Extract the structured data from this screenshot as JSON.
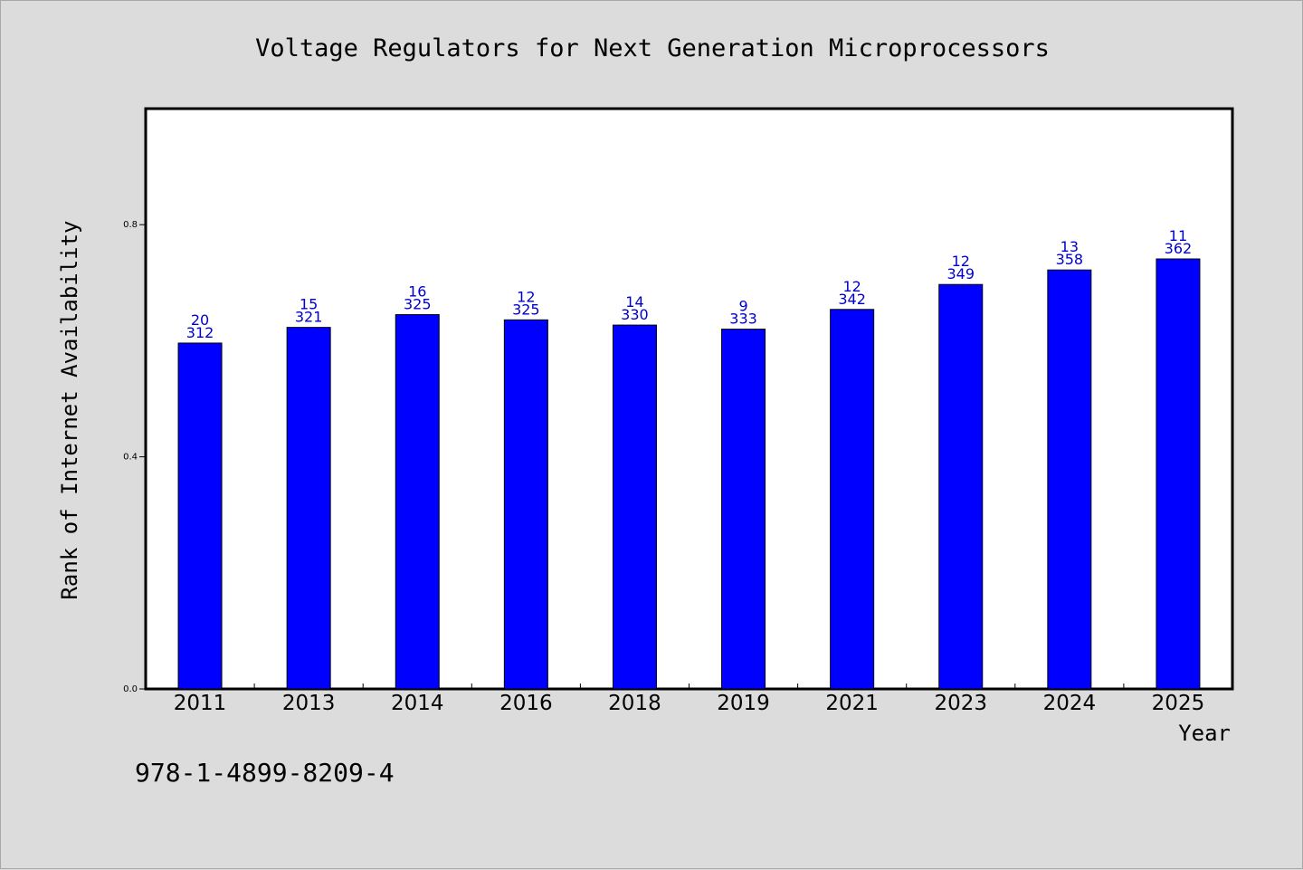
{
  "chart_data": {
    "type": "bar",
    "title": "Voltage Regulators for Next Generation Microprocessors",
    "xlabel": "Year",
    "ylabel": "Rank of Internet Availability",
    "ylim": [
      0,
      1.0
    ],
    "yticks": [
      "0.0",
      "0.4",
      "0.8"
    ],
    "grid": false,
    "legend": "none",
    "categories": [
      "2011",
      "2013",
      "2014",
      "2016",
      "2018",
      "2019",
      "2021",
      "2023",
      "2024",
      "2025"
    ],
    "values": [
      0.596,
      0.623,
      0.645,
      0.636,
      0.627,
      0.62,
      0.654,
      0.697,
      0.722,
      0.741
    ],
    "labels_top": [
      "20",
      "15",
      "16",
      "12",
      "14",
      "9",
      "12",
      "12",
      "13",
      "11"
    ],
    "labels_bottom": [
      "312",
      "321",
      "325",
      "325",
      "330",
      "333",
      "342",
      "349",
      "358",
      "362"
    ],
    "bar_color": "#0000ff",
    "label_color": "#0000cc"
  },
  "footer": {
    "isbn": "978-1-4899-8209-4"
  },
  "colors": {
    "background": "#dcdcdc",
    "plot_background": "#ffffff"
  }
}
